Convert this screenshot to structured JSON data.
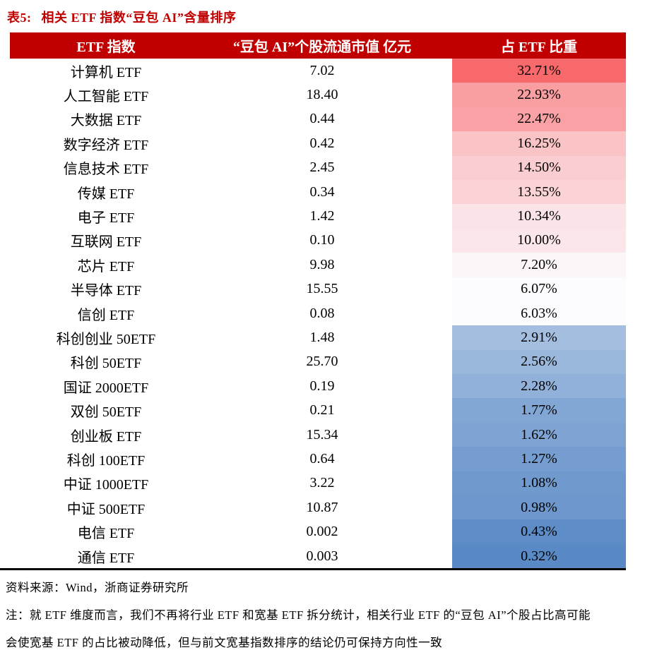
{
  "title": {
    "label": "表5:",
    "text": "相关 ETF 指数“豆包 AI”含量排序"
  },
  "colors": {
    "title_red": "#C00000",
    "header_bg": "#C00000",
    "header_text": "#FFFFFF",
    "scale_max_red": "#F8696B",
    "scale_mid_white": "#FCFCFF",
    "scale_min_blue": "#5A8AC6",
    "bottom_rule": "#000000"
  },
  "table": {
    "headers": [
      "ETF 指数",
      "“豆包 AI”个股流通市值 亿元",
      "占 ETF 比重"
    ],
    "rows": [
      {
        "name": "计算机 ETF",
        "value": "7.02",
        "pct": "32.71%",
        "color": "#F8696B"
      },
      {
        "name": "人工智能 ETF",
        "value": "18.40",
        "pct": "22.93%",
        "color": "#F99FA1"
      },
      {
        "name": "大数据 ETF",
        "value": "0.44",
        "pct": "22.47%",
        "color": "#F9A1A4"
      },
      {
        "name": "数字经济 ETF",
        "value": "0.42",
        "pct": "16.25%",
        "color": "#FAC4C6"
      },
      {
        "name": "信息技术 ETF",
        "value": "2.45",
        "pct": "14.50%",
        "color": "#FACDD0"
      },
      {
        "name": "传媒 ETF",
        "value": "0.34",
        "pct": "13.55%",
        "color": "#FBD3D5"
      },
      {
        "name": "电子 ETF",
        "value": "1.42",
        "pct": "10.34%",
        "color": "#FBE4E7"
      },
      {
        "name": "互联网 ETF",
        "value": "0.10",
        "pct": "10.00%",
        "color": "#FBE6E9"
      },
      {
        "name": "芯片 ETF",
        "value": "9.98",
        "pct": "7.20%",
        "color": "#FCF6F8"
      },
      {
        "name": "半导体 ETF",
        "value": "15.55",
        "pct": "6.07%",
        "color": "#FCFCFE"
      },
      {
        "name": "信创 ETF",
        "value": "0.08",
        "pct": "6.03%",
        "color": "#FCFCFF"
      },
      {
        "name": "科创创业 50ETF",
        "value": "1.48",
        "pct": "2.91%",
        "color": "#A4BEE0"
      },
      {
        "name": "科创 50ETF",
        "value": "25.70",
        "pct": "2.56%",
        "color": "#9AB7DC"
      },
      {
        "name": "国证 2000ETF",
        "value": "0.19",
        "pct": "2.28%",
        "color": "#92B1DA"
      },
      {
        "name": "双创 50ETF",
        "value": "0.21",
        "pct": "1.77%",
        "color": "#83A7D5"
      },
      {
        "name": "创业板 ETF",
        "value": "15.34",
        "pct": "1.62%",
        "color": "#7FA4D3"
      },
      {
        "name": "科创 100ETF",
        "value": "0.64",
        "pct": "1.27%",
        "color": "#759DD0"
      },
      {
        "name": "中证 1000ETF",
        "value": "3.22",
        "pct": "1.08%",
        "color": "#7099CE"
      },
      {
        "name": "中证 500ETF",
        "value": "10.87",
        "pct": "0.98%",
        "color": "#6D97CD"
      },
      {
        "name": "电信 ETF",
        "value": "0.002",
        "pct": "0.43%",
        "color": "#5D8CC7"
      },
      {
        "name": "通信 ETF",
        "value": "0.003",
        "pct": "0.32%",
        "color": "#5A8AC6"
      }
    ]
  },
  "footer": {
    "source": "资料来源：Wind，浙商证券研究所",
    "note1": "注：就 ETF 维度而言，我们不再将行业 ETF 和宽基 ETF 拆分统计，相关行业 ETF 的“豆包 AI”个股占比高可能",
    "note2": "会使宽基 ETF 的占比被动降低，但与前文宽基指数排序的结论仍可保持方向性一致"
  }
}
